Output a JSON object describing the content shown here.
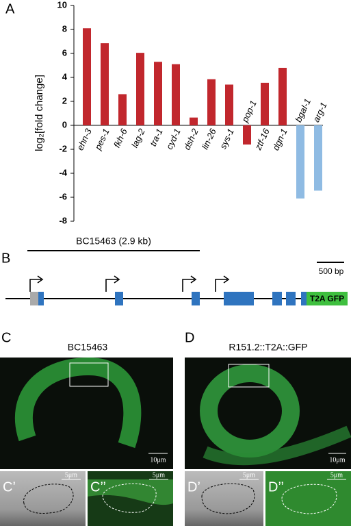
{
  "chart_data": {
    "type": "bar",
    "panel": "A",
    "ylabel": "log₂[fold change]",
    "categories": [
      "ehn-3",
      "pes-1",
      "fkh-6",
      "lag-2",
      "tra-1",
      "cyd-1",
      "dsh-2",
      "lin-26",
      "sys-1",
      "pop-1",
      "ztf-16",
      "dgn-1",
      "bgal-1",
      "arg-1"
    ],
    "values": [
      8.1,
      6.85,
      2.6,
      6.05,
      5.3,
      5.1,
      0.65,
      3.85,
      3.4,
      -1.6,
      3.55,
      4.8,
      -6.1,
      -5.45
    ],
    "colors": [
      "#c1272d",
      "#c1272d",
      "#c1272d",
      "#c1272d",
      "#c1272d",
      "#c1272d",
      "#c1272d",
      "#c1272d",
      "#c1272d",
      "#c1272d",
      "#c1272d",
      "#c1272d",
      "#8fbbe3",
      "#8fbbe3"
    ],
    "ylim": [
      -8,
      10
    ],
    "yticks": [
      -8,
      -6,
      -4,
      -2,
      0,
      2,
      4,
      6,
      8,
      10
    ],
    "grid": false
  },
  "panel_b": {
    "letter": "B",
    "fragment": "BC15463 (2.9 kb)",
    "scale": "500 bp",
    "tag": "T2A GFP"
  },
  "panel_c": {
    "letter": "C",
    "title": "BC15463",
    "scale": "10μm",
    "sub1": "C’",
    "sub2": "C’’",
    "subscale": "5μm"
  },
  "panel_d": {
    "letter": "D",
    "title": "R151.2::T2A::GFP",
    "scale": "10μm",
    "sub1": "D’",
    "sub2": "D’’",
    "subscale": "5μm"
  }
}
